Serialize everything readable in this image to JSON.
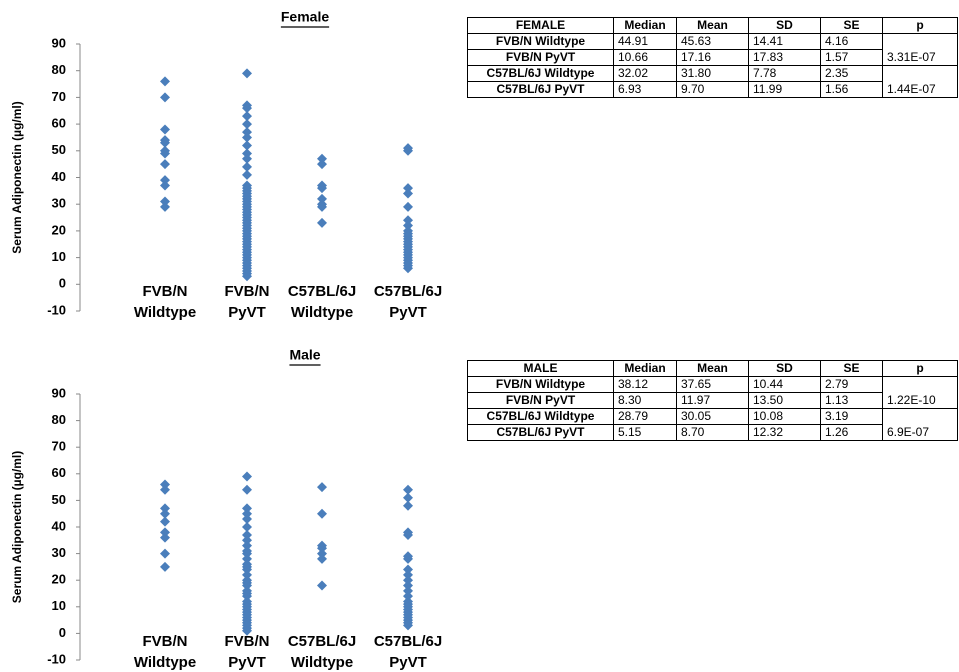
{
  "chart_data": [
    {
      "type": "strip",
      "title": "Female",
      "y_label": "Serum Adiponectin (µg/ml)",
      "color": "#4a7ebb",
      "categories": [
        [
          "FVB/N",
          "Wildtype"
        ],
        [
          "FVB/N",
          "PyVT"
        ],
        [
          "C57BL/6J",
          "Wildtype"
        ],
        [
          "C57BL/6J",
          "PyVT"
        ]
      ],
      "values": [
        [
          76,
          70,
          58,
          54,
          53,
          50,
          49,
          45,
          39,
          37,
          31,
          29
        ],
        [
          79,
          67,
          66,
          63,
          60,
          57,
          55,
          52,
          49,
          47,
          44,
          41,
          37,
          36,
          35,
          34,
          33,
          32,
          31,
          30,
          29,
          28,
          27,
          26,
          25,
          24,
          23,
          22,
          21,
          20,
          19,
          18,
          17,
          16,
          15,
          14,
          13,
          12,
          11,
          10,
          9,
          8,
          7,
          6,
          5,
          4,
          3
        ],
        [
          47,
          45,
          37,
          36,
          32,
          30,
          29,
          23
        ],
        [
          51,
          50,
          36,
          34,
          29,
          24,
          22,
          20,
          19,
          18,
          17,
          16,
          15,
          14,
          13,
          12,
          11,
          10,
          9,
          8,
          7,
          6
        ]
      ],
      "ylim": [
        -10,
        90
      ],
      "yticks": [
        -10,
        0,
        10,
        20,
        30,
        40,
        50,
        60,
        70,
        80,
        90
      ]
    },
    {
      "type": "strip",
      "title": "Male",
      "y_label": "Serum Adiponectin (µg/ml)",
      "color": "#4a7ebb",
      "categories": [
        [
          "FVB/N",
          "Wildtype"
        ],
        [
          "FVB/N",
          "PyVT"
        ],
        [
          "C57BL/6J",
          "Wildtype"
        ],
        [
          "C57BL/6J",
          "PyVT"
        ]
      ],
      "values": [
        [
          56,
          54,
          47,
          45,
          42,
          38,
          36,
          30,
          25
        ],
        [
          59,
          54,
          47,
          45,
          43,
          40,
          37,
          35,
          33,
          31,
          30,
          28,
          26,
          25,
          24,
          22,
          20,
          19,
          18,
          16,
          15,
          14,
          12,
          11,
          10,
          9,
          8,
          7,
          6,
          5,
          4,
          3,
          2,
          1
        ],
        [
          55,
          45,
          33,
          32,
          30,
          28,
          18
        ],
        [
          54,
          51,
          48,
          38,
          37,
          29,
          28,
          24,
          22,
          20,
          18,
          16,
          14,
          12,
          11,
          10,
          9,
          8,
          7,
          6,
          5,
          4,
          3
        ]
      ],
      "ylim": [
        -10,
        90
      ],
      "yticks": [
        -10,
        0,
        10,
        20,
        30,
        40,
        50,
        60,
        70,
        80,
        90
      ]
    }
  ],
  "tables": [
    {
      "header": [
        "FEMALE",
        "Median",
        "Mean",
        "SD",
        "SE",
        "p"
      ],
      "rows": [
        [
          "FVB/N Wildtype",
          "44.91",
          "45.63",
          "14.41",
          "4.16"
        ],
        [
          "FVB/N PyVT",
          "10.66",
          "17.16",
          "17.83",
          "1.57"
        ],
        [
          "C57BL/6J Wildtype",
          "32.02",
          "31.80",
          "7.78",
          "2.35"
        ],
        [
          "C57BL/6J PyVT",
          "6.93",
          "9.70",
          "11.99",
          "1.56"
        ]
      ],
      "p": [
        "3.31E-07",
        "1.44E-07"
      ]
    },
    {
      "header": [
        "MALE",
        "Median",
        "Mean",
        "SD",
        "SE",
        "p"
      ],
      "rows": [
        [
          "FVB/N Wildtype",
          "38.12",
          "37.65",
          "10.44",
          "2.79"
        ],
        [
          "FVB/N PyVT",
          "8.30",
          "11.97",
          "13.50",
          "1.13"
        ],
        [
          "C57BL/6J Wildtype",
          "28.79",
          "30.05",
          "10.08",
          "3.19"
        ],
        [
          "C57BL/6J PyVT",
          "5.15",
          "8.70",
          "12.32",
          "1.26"
        ]
      ],
      "p": [
        "1.22E-10",
        "6.9E-07"
      ]
    }
  ]
}
